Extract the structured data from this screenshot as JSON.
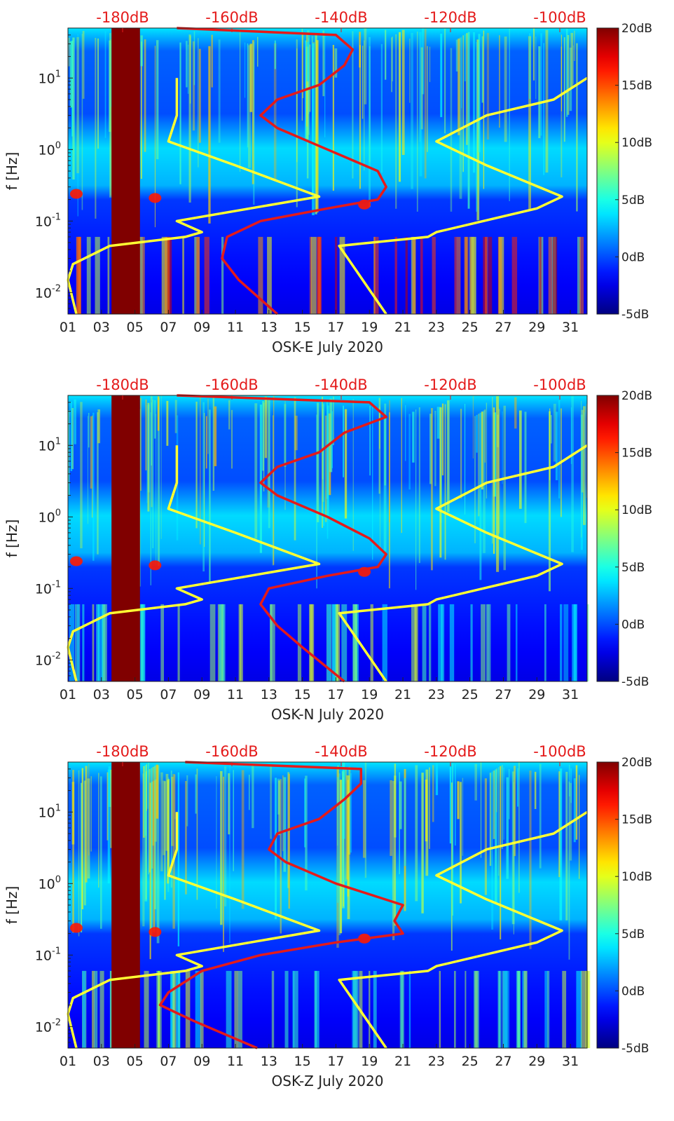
{
  "figure": {
    "colorbar_ticks": [
      "20dB",
      "15dB",
      "10dB",
      "5dB",
      "0dB",
      "-5dB"
    ],
    "top_ticks": [
      "-180dB",
      "-160dB",
      "-140dB",
      "-120dB",
      "-100dB"
    ],
    "y_ticks": [
      {
        "base": "10",
        "exp": "1"
      },
      {
        "base": "10",
        "exp": "0"
      },
      {
        "base": "10",
        "exp": "-1"
      },
      {
        "base": "10",
        "exp": "-2"
      }
    ],
    "x_ticks": [
      "01",
      "03",
      "05",
      "07",
      "09",
      "11",
      "13",
      "15",
      "17",
      "19",
      "21",
      "23",
      "25",
      "27",
      "29",
      "31"
    ],
    "ylabel": "f [Hz]"
  },
  "chart_data": [
    {
      "type": "heatmap",
      "xlabel": "OSK-E July 2020",
      "ylabel": "f [Hz]",
      "y_scale": "log",
      "xlim": [
        1,
        32
      ],
      "ylim": [
        0.005,
        50
      ],
      "colorbar_range_dB": [
        -5,
        20
      ],
      "top_axis_range_dB": [
        -190,
        -95
      ],
      "data_gap_days": [
        3.6,
        5.3
      ],
      "red_curve": [
        {
          "f": 0.005,
          "day": 13.5
        },
        {
          "f": 0.015,
          "day": 11.2
        },
        {
          "f": 0.03,
          "day": 10.2
        },
        {
          "f": 0.06,
          "day": 10.5
        },
        {
          "f": 0.1,
          "day": 12.5
        },
        {
          "f": 0.15,
          "day": 16.5
        },
        {
          "f": 0.2,
          "day": 19.5
        },
        {
          "f": 0.3,
          "day": 20
        },
        {
          "f": 0.5,
          "day": 19.5
        },
        {
          "f": 1,
          "day": 16.5
        },
        {
          "f": 2,
          "day": 13.5
        },
        {
          "f": 3,
          "day": 12.5
        },
        {
          "f": 5,
          "day": 13.5
        },
        {
          "f": 8,
          "day": 16
        },
        {
          "f": 15,
          "day": 17.5
        },
        {
          "f": 25,
          "day": 18
        },
        {
          "f": 40,
          "day": 17
        },
        {
          "f": 50,
          "day": 7.5
        }
      ],
      "yellow_curve_left": [
        {
          "f": 0.005,
          "day": 1.5
        },
        {
          "f": 0.015,
          "day": 1
        },
        {
          "f": 0.025,
          "day": 1.3
        },
        {
          "f": 0.045,
          "day": 3.5
        },
        {
          "f": 0.06,
          "day": 8
        },
        {
          "f": 0.07,
          "day": 9
        },
        {
          "f": 0.1,
          "day": 7.5
        },
        {
          "f": 0.22,
          "day": 16
        },
        {
          "f": 0.6,
          "day": 11
        },
        {
          "f": 1.3,
          "day": 7
        },
        {
          "f": 3,
          "day": 7.5
        },
        {
          "f": 10,
          "day": 7.5
        }
      ],
      "yellow_curve_right": [
        {
          "f": 0.005,
          "day": 20
        },
        {
          "f": 0.045,
          "day": 17.2
        },
        {
          "f": 0.06,
          "day": 22.5
        },
        {
          "f": 0.07,
          "day": 23
        },
        {
          "f": 0.15,
          "day": 29
        },
        {
          "f": 0.22,
          "day": 30.5
        },
        {
          "f": 0.6,
          "day": 26
        },
        {
          "f": 1.3,
          "day": 23
        },
        {
          "f": 3,
          "day": 26
        },
        {
          "f": 5,
          "day": 30
        },
        {
          "f": 10,
          "day": 32
        }
      ]
    },
    {
      "type": "heatmap",
      "xlabel": "OSK-N July 2020",
      "ylabel": "f [Hz]",
      "y_scale": "log",
      "xlim": [
        1,
        32
      ],
      "ylim": [
        0.005,
        50
      ],
      "colorbar_range_dB": [
        -5,
        20
      ],
      "top_axis_range_dB": [
        -190,
        -95
      ],
      "data_gap_days": [
        3.6,
        5.3
      ],
      "red_curve": [
        {
          "f": 0.005,
          "day": 17.5
        },
        {
          "f": 0.015,
          "day": 15
        },
        {
          "f": 0.03,
          "day": 13.5
        },
        {
          "f": 0.06,
          "day": 12.5
        },
        {
          "f": 0.1,
          "day": 13
        },
        {
          "f": 0.15,
          "day": 16.5
        },
        {
          "f": 0.2,
          "day": 19.5
        },
        {
          "f": 0.3,
          "day": 20
        },
        {
          "f": 0.5,
          "day": 19
        },
        {
          "f": 1,
          "day": 16.5
        },
        {
          "f": 2,
          "day": 13.5
        },
        {
          "f": 3,
          "day": 12.5
        },
        {
          "f": 5,
          "day": 13.5
        },
        {
          "f": 8,
          "day": 16
        },
        {
          "f": 15,
          "day": 17.5
        },
        {
          "f": 25,
          "day": 20
        },
        {
          "f": 40,
          "day": 19
        },
        {
          "f": 50,
          "day": 7.5
        }
      ],
      "yellow_curve_left": [
        {
          "f": 0.005,
          "day": 1.5
        },
        {
          "f": 0.015,
          "day": 1
        },
        {
          "f": 0.025,
          "day": 1.3
        },
        {
          "f": 0.045,
          "day": 3.5
        },
        {
          "f": 0.06,
          "day": 8
        },
        {
          "f": 0.07,
          "day": 9
        },
        {
          "f": 0.1,
          "day": 7.5
        },
        {
          "f": 0.22,
          "day": 16
        },
        {
          "f": 0.6,
          "day": 11
        },
        {
          "f": 1.3,
          "day": 7
        },
        {
          "f": 3,
          "day": 7.5
        },
        {
          "f": 10,
          "day": 7.5
        }
      ],
      "yellow_curve_right": [
        {
          "f": 0.005,
          "day": 20
        },
        {
          "f": 0.045,
          "day": 17.2
        },
        {
          "f": 0.06,
          "day": 22.5
        },
        {
          "f": 0.07,
          "day": 23
        },
        {
          "f": 0.15,
          "day": 29
        },
        {
          "f": 0.22,
          "day": 30.5
        },
        {
          "f": 0.6,
          "day": 26
        },
        {
          "f": 1.3,
          "day": 23
        },
        {
          "f": 3,
          "day": 26
        },
        {
          "f": 5,
          "day": 30
        },
        {
          "f": 10,
          "day": 32
        }
      ]
    },
    {
      "type": "heatmap",
      "xlabel": "OSK-Z July 2020",
      "ylabel": "f [Hz]",
      "y_scale": "log",
      "xlim": [
        1,
        32
      ],
      "ylim": [
        0.005,
        50
      ],
      "colorbar_range_dB": [
        -5,
        20
      ],
      "top_axis_range_dB": [
        -190,
        -95
      ],
      "data_gap_days": [
        3.6,
        5.3
      ],
      "red_curve": [
        {
          "f": 0.005,
          "day": 12.3
        },
        {
          "f": 0.012,
          "day": 8.5
        },
        {
          "f": 0.02,
          "day": 6.5
        },
        {
          "f": 0.03,
          "day": 7
        },
        {
          "f": 0.06,
          "day": 9
        },
        {
          "f": 0.1,
          "day": 12.5
        },
        {
          "f": 0.15,
          "day": 17
        },
        {
          "f": 0.2,
          "day": 21
        },
        {
          "f": 0.3,
          "day": 20.5
        },
        {
          "f": 0.5,
          "day": 21
        },
        {
          "f": 1,
          "day": 17
        },
        {
          "f": 2,
          "day": 14
        },
        {
          "f": 3,
          "day": 13
        },
        {
          "f": 5,
          "day": 13.5
        },
        {
          "f": 8,
          "day": 16
        },
        {
          "f": 15,
          "day": 17.5
        },
        {
          "f": 25,
          "day": 18.5
        },
        {
          "f": 40,
          "day": 18.5
        },
        {
          "f": 50,
          "day": 8
        }
      ],
      "yellow_curve_left": [
        {
          "f": 0.005,
          "day": 1.5
        },
        {
          "f": 0.015,
          "day": 1
        },
        {
          "f": 0.025,
          "day": 1.3
        },
        {
          "f": 0.045,
          "day": 3.5
        },
        {
          "f": 0.06,
          "day": 8
        },
        {
          "f": 0.07,
          "day": 9
        },
        {
          "f": 0.1,
          "day": 7.5
        },
        {
          "f": 0.22,
          "day": 16
        },
        {
          "f": 0.6,
          "day": 11
        },
        {
          "f": 1.3,
          "day": 7
        },
        {
          "f": 3,
          "day": 7.5
        },
        {
          "f": 10,
          "day": 7.5
        }
      ],
      "yellow_curve_right": [
        {
          "f": 0.005,
          "day": 20
        },
        {
          "f": 0.045,
          "day": 17.2
        },
        {
          "f": 0.06,
          "day": 22.5
        },
        {
          "f": 0.07,
          "day": 23
        },
        {
          "f": 0.15,
          "day": 29
        },
        {
          "f": 0.22,
          "day": 30.5
        },
        {
          "f": 0.6,
          "day": 26
        },
        {
          "f": 1.3,
          "day": 23
        },
        {
          "f": 3,
          "day": 26
        },
        {
          "f": 5,
          "day": 30
        },
        {
          "f": 10,
          "day": 32
        }
      ]
    }
  ]
}
